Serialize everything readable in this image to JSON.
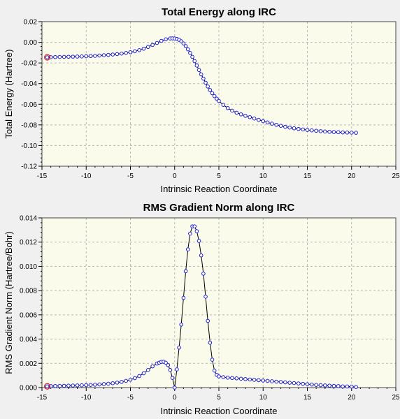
{
  "chart_data": [
    {
      "type": "line",
      "title": "Total Energy along IRC",
      "xlabel": "Intrinsic Reaction Coordinate",
      "ylabel": "Total Energy (Hartree)",
      "xlim": [
        -15,
        25
      ],
      "ylim": [
        -0.12,
        0.02
      ],
      "xticks": [
        -15,
        -10,
        -5,
        0,
        5,
        10,
        15,
        20,
        25
      ],
      "yticks": [
        -0.12,
        -0.1,
        -0.08,
        -0.06,
        -0.04,
        -0.02,
        0.0,
        0.02
      ],
      "xtick_labels": [
        "-15",
        "-10",
        "-5",
        "0",
        "5",
        "10",
        "15",
        "20",
        "25"
      ],
      "ytick_labels": [
        "-0.12",
        "-0.10",
        "-0.08",
        "-0.06",
        "-0.04",
        "-0.02",
        "0.00",
        "0.02"
      ],
      "grid": true,
      "highlight_point": {
        "x": -14.4,
        "y": -0.0145
      },
      "series": [
        {
          "x": [
            -14.4,
            -14.0,
            -13.5,
            -13.0,
            -12.5,
            -12.0,
            -11.5,
            -11.0,
            -10.5,
            -10.0,
            -9.5,
            -9.0,
            -8.5,
            -8.0,
            -7.5,
            -7.0,
            -6.5,
            -6.0,
            -5.5,
            -5.0,
            -4.5,
            -4.0,
            -3.5,
            -3.0,
            -2.5,
            -2.0,
            -1.5,
            -1.0,
            -0.5,
            -0.25,
            0.0,
            0.25,
            0.5,
            0.75,
            1.0,
            1.25,
            1.5,
            1.75,
            2.0,
            2.25,
            2.5,
            2.75,
            3.0,
            3.25,
            3.5,
            3.75,
            4.0,
            4.25,
            4.5,
            4.75,
            5.0,
            5.5,
            6.0,
            6.5,
            7.0,
            7.5,
            8.0,
            8.5,
            9.0,
            9.5,
            10.0,
            10.5,
            11.0,
            11.5,
            12.0,
            12.5,
            13.0,
            13.5,
            14.0,
            14.5,
            15.0,
            15.5,
            16.0,
            16.5,
            17.0,
            17.5,
            18.0,
            18.5,
            19.0,
            19.5,
            20.0,
            20.5
          ],
          "y": [
            -0.0145,
            -0.0144,
            -0.0143,
            -0.0142,
            -0.0141,
            -0.014,
            -0.0139,
            -0.0138,
            -0.0137,
            -0.0135,
            -0.0133,
            -0.0131,
            -0.0128,
            -0.0125,
            -0.0122,
            -0.0118,
            -0.0114,
            -0.0109,
            -0.0103,
            -0.0096,
            -0.0087,
            -0.0076,
            -0.0062,
            -0.0045,
            -0.0026,
            -0.0006,
            0.0014,
            0.0029,
            0.0037,
            0.0038,
            0.0037,
            0.0033,
            0.0024,
            0.001,
            -0.0011,
            -0.0037,
            -0.0068,
            -0.0103,
            -0.0141,
            -0.0182,
            -0.0225,
            -0.0268,
            -0.0311,
            -0.0352,
            -0.0391,
            -0.0428,
            -0.0462,
            -0.0493,
            -0.0521,
            -0.0546,
            -0.0568,
            -0.0606,
            -0.0637,
            -0.0662,
            -0.0682,
            -0.0698,
            -0.0712,
            -0.0725,
            -0.0738,
            -0.0751,
            -0.0764,
            -0.0776,
            -0.0788,
            -0.0799,
            -0.0809,
            -0.0818,
            -0.0826,
            -0.0833,
            -0.0839,
            -0.0844,
            -0.0849,
            -0.0853,
            -0.0857,
            -0.0861,
            -0.0864,
            -0.0867,
            -0.0869,
            -0.0871,
            -0.0873,
            -0.0874,
            -0.0875,
            -0.0876
          ]
        }
      ]
    },
    {
      "type": "line",
      "title": "RMS Gradient Norm along IRC",
      "xlabel": "Intrinsic Reaction Coordinate",
      "ylabel": "RMS Gradient Norm (Hartree/Bohr)",
      "xlim": [
        -15,
        25
      ],
      "ylim": [
        0,
        0.014
      ],
      "xticks": [
        -15,
        -10,
        -5,
        0,
        5,
        10,
        15,
        20,
        25
      ],
      "yticks": [
        0,
        0.002,
        0.004,
        0.006,
        0.008,
        0.01,
        0.012,
        0.014
      ],
      "xtick_labels": [
        "-15",
        "-10",
        "-5",
        "0",
        "5",
        "10",
        "15",
        "20",
        "25"
      ],
      "ytick_labels": [
        "0.000",
        "0.002",
        "0.004",
        "0.006",
        "0.008",
        "0.010",
        "0.012",
        "0.014"
      ],
      "grid": true,
      "highlight_point": {
        "x": -14.4,
        "y": 0.0001
      },
      "series": [
        {
          "x": [
            -14.4,
            -14.0,
            -13.5,
            -13.0,
            -12.5,
            -12.0,
            -11.5,
            -11.0,
            -10.5,
            -10.0,
            -9.5,
            -9.0,
            -8.5,
            -8.0,
            -7.5,
            -7.0,
            -6.5,
            -6.0,
            -5.5,
            -5.0,
            -4.5,
            -4.0,
            -3.5,
            -3.0,
            -2.5,
            -2.0,
            -1.75,
            -1.5,
            -1.25,
            -1.0,
            -0.75,
            -0.5,
            -0.25,
            0.0,
            0.25,
            0.5,
            0.75,
            1.0,
            1.25,
            1.5,
            1.75,
            2.0,
            2.25,
            2.5,
            2.75,
            3.0,
            3.25,
            3.5,
            3.75,
            4.0,
            4.25,
            4.5,
            4.75,
            5.0,
            5.5,
            6.0,
            6.5,
            7.0,
            7.5,
            8.0,
            8.5,
            9.0,
            9.5,
            10.0,
            10.5,
            11.0,
            11.5,
            12.0,
            12.5,
            13.0,
            13.5,
            14.0,
            14.5,
            15.0,
            15.5,
            16.0,
            16.5,
            17.0,
            17.5,
            18.0,
            18.5,
            19.0,
            19.5,
            20.0,
            20.5
          ],
          "y": [
            0.0001,
            0.00012,
            0.00013,
            0.00014,
            0.00015,
            0.00016,
            0.00017,
            0.00018,
            0.00019,
            0.0002,
            0.00022,
            0.00024,
            0.00026,
            0.00029,
            0.00032,
            0.00036,
            0.00041,
            0.00047,
            0.00055,
            0.00065,
            0.00078,
            0.00095,
            0.00118,
            0.00145,
            0.00175,
            0.00198,
            0.00206,
            0.00212,
            0.00213,
            0.00205,
            0.00185,
            0.00145,
            0.0008,
            0.0,
            0.0015,
            0.0033,
            0.0052,
            0.0074,
            0.0096,
            0.0114,
            0.0127,
            0.0133,
            0.0133,
            0.0129,
            0.0121,
            0.0109,
            0.0094,
            0.0075,
            0.0055,
            0.0037,
            0.0023,
            0.0014,
            0.00105,
            0.00092,
            0.00086,
            0.00082,
            0.00079,
            0.00076,
            0.00073,
            0.0007,
            0.00067,
            0.00064,
            0.00061,
            0.00058,
            0.00055,
            0.00052,
            0.00049,
            0.00046,
            0.00043,
            0.0004,
            0.00037,
            0.00034,
            0.00031,
            0.00028,
            0.00025,
            0.00022,
            0.0002,
            0.00018,
            0.00016,
            0.00014,
            0.00012,
            0.0001,
            9e-05,
            8e-05,
            5e-05
          ]
        }
      ]
    }
  ]
}
